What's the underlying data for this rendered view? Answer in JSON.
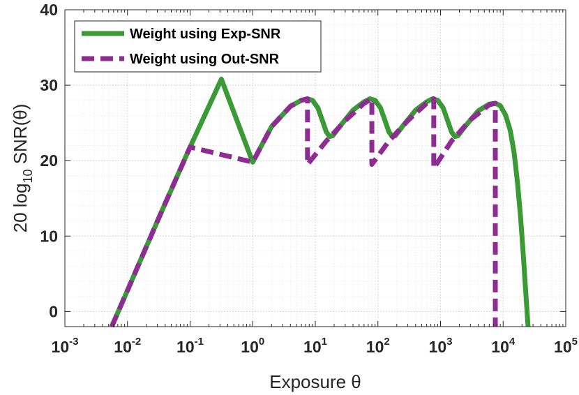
{
  "chart_data": {
    "type": "line",
    "xlabel": "Exposure θ",
    "ylabel": "20 log10 SNR(θ)",
    "ylabel_parts": {
      "prefix": "20 log",
      "subscript": "10",
      "suffix": " SNR(θ)"
    },
    "x_scale": "log",
    "xlim": [
      0.001,
      100000
    ],
    "ylim": [
      -2,
      40
    ],
    "x_ticks": [
      {
        "base": "10",
        "exp": "-3",
        "value": 0.001
      },
      {
        "base": "10",
        "exp": "-2",
        "value": 0.01
      },
      {
        "base": "10",
        "exp": "-1",
        "value": 0.1
      },
      {
        "base": "10",
        "exp": "0",
        "value": 1
      },
      {
        "base": "10",
        "exp": "1",
        "value": 10
      },
      {
        "base": "10",
        "exp": "2",
        "value": 100
      },
      {
        "base": "10",
        "exp": "3",
        "value": 1000
      },
      {
        "base": "10",
        "exp": "4",
        "value": 10000
      },
      {
        "base": "10",
        "exp": "5",
        "value": 100000
      }
    ],
    "y_ticks": [
      {
        "label": "0",
        "value": 0
      },
      {
        "label": "10",
        "value": 10
      },
      {
        "label": "20",
        "value": 20
      },
      {
        "label": "30",
        "value": 30
      },
      {
        "label": "40",
        "value": 40
      }
    ],
    "grid": true,
    "minor_grid": true,
    "legend_position": "top-left",
    "series": [
      {
        "name": "Weight using Exp-SNR",
        "color": "#3a9a35",
        "line_style": "solid",
        "points": [
          [
            0.0056,
            -2
          ],
          [
            0.01,
            2.8
          ],
          [
            0.0316,
            12.4
          ],
          [
            0.1,
            21.8
          ],
          [
            0.316,
            30.8
          ],
          [
            1,
            19.8
          ],
          [
            2,
            24.5
          ],
          [
            4,
            27.2
          ],
          [
            6,
            28.0
          ],
          [
            7.5,
            28.2
          ],
          [
            9,
            28.0
          ],
          [
            11,
            27.0
          ],
          [
            13,
            25.3
          ],
          [
            15,
            23.8
          ],
          [
            17,
            23.2
          ],
          [
            19,
            23.3
          ],
          [
            25,
            24.6
          ],
          [
            40,
            26.7
          ],
          [
            60,
            27.8
          ],
          [
            75,
            28.2
          ],
          [
            90,
            28.0
          ],
          [
            110,
            27.0
          ],
          [
            130,
            25.3
          ],
          [
            150,
            23.8
          ],
          [
            170,
            23.2
          ],
          [
            190,
            23.3
          ],
          [
            250,
            24.6
          ],
          [
            400,
            26.7
          ],
          [
            600,
            27.8
          ],
          [
            750,
            28.2
          ],
          [
            900,
            28.0
          ],
          [
            1100,
            27.0
          ],
          [
            1300,
            25.3
          ],
          [
            1500,
            23.8
          ],
          [
            1700,
            23.2
          ],
          [
            1900,
            23.3
          ],
          [
            2500,
            24.6
          ],
          [
            4000,
            26.6
          ],
          [
            6000,
            27.5
          ],
          [
            7500,
            27.6
          ],
          [
            9000,
            27.3
          ],
          [
            11000,
            26.0
          ],
          [
            13000,
            24.0
          ],
          [
            15000,
            21.0
          ],
          [
            17000,
            17.0
          ],
          [
            19000,
            12.5
          ],
          [
            21000,
            7.5
          ],
          [
            23000,
            2.5
          ],
          [
            25000,
            -2
          ]
        ]
      },
      {
        "name": "Weight using Out-SNR",
        "color": "#8e2d91",
        "line_style": "dashed",
        "points": [
          [
            0.0056,
            -2
          ],
          [
            0.01,
            2.8
          ],
          [
            0.0316,
            12.4
          ],
          [
            0.1,
            21.8
          ],
          [
            1,
            19.8
          ],
          [
            2,
            24.5
          ],
          [
            4,
            27.2
          ],
          [
            6,
            28.0
          ],
          [
            7.5,
            28.2
          ],
          [
            7.5,
            19.5
          ],
          [
            15,
            22.6
          ],
          [
            30,
            25.3
          ],
          [
            60,
            27.6
          ],
          [
            80,
            28.2
          ],
          [
            80,
            19.5
          ],
          [
            150,
            22.6
          ],
          [
            300,
            25.3
          ],
          [
            600,
            27.6
          ],
          [
            780,
            28.2
          ],
          [
            780,
            19.0
          ],
          [
            1500,
            22.6
          ],
          [
            3000,
            25.4
          ],
          [
            6000,
            27.4
          ],
          [
            7500,
            27.6
          ],
          [
            7500,
            -2
          ]
        ]
      }
    ]
  }
}
